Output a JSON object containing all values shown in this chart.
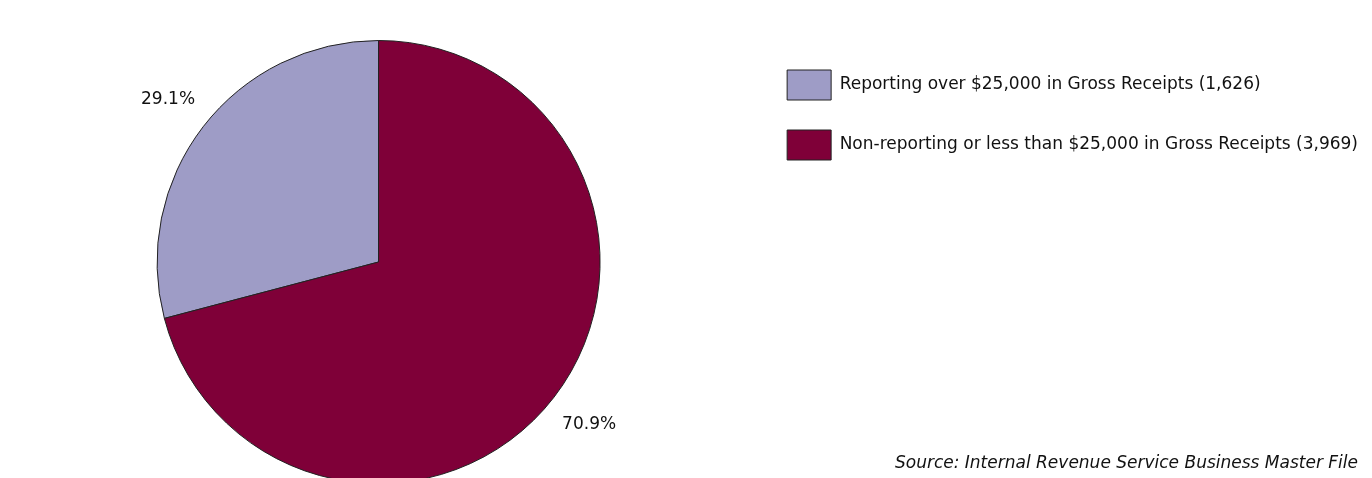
{
  "chart_data": {
    "type": "pie",
    "categories": [
      "Reporting over $25,000 in Gross Receipts (1,626)",
      "Non-reporting or less than $25,000 in Gross Receipts (3,969)"
    ],
    "values": [
      29.1,
      70.9
    ],
    "value_labels": [
      "29.1%",
      "70.9%"
    ],
    "colors": [
      "#9e9cc6",
      "#7f0038"
    ],
    "legend": "top right",
    "annotations": [
      "Source: Internal Revenue Service Business Master File"
    ]
  }
}
